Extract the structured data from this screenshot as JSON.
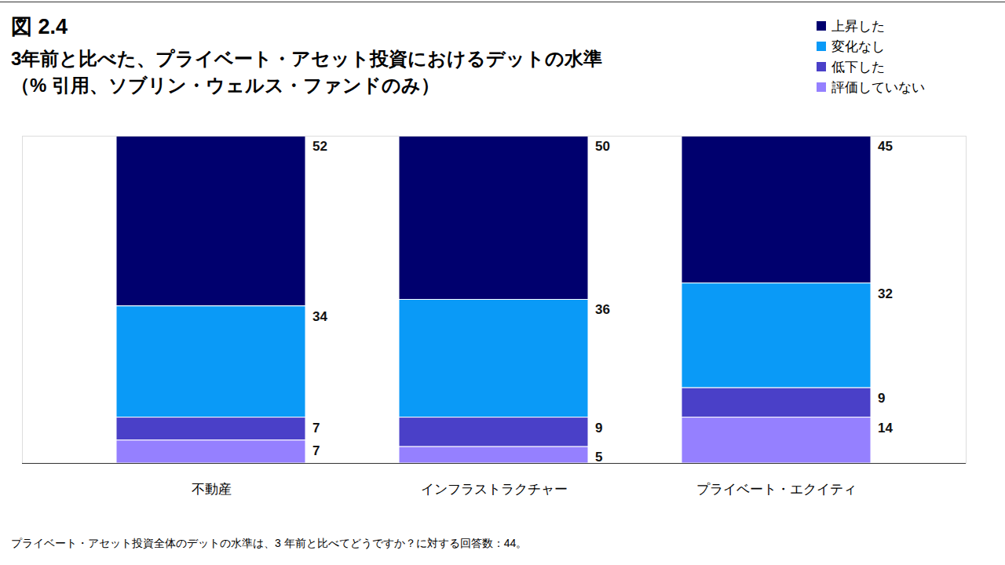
{
  "chart_data": {
    "type": "bar",
    "title": "図 2.4",
    "subtitle": [
      "3年前と比べた、プライベート・アセット投資におけるデットの水準",
      "（% 引用、ソブリン・ウェルス・ファンドのみ）"
    ],
    "caption": "プライベート・アセット投資全体のデットの水準は、3 年前と比べてどうですか？に対する回答数：44。",
    "categories": [
      "不動産",
      "インフラストラクチャー",
      "プライベート・エクイティ"
    ],
    "series": [
      {
        "name": "上昇した",
        "color": "#00006e",
        "values": [
          52,
          50,
          45
        ]
      },
      {
        "name": "変化なし",
        "color": "#0a9af7",
        "values": [
          34,
          36,
          32
        ]
      },
      {
        "name": "低下した",
        "color": "#4a40c8",
        "values": [
          7,
          9,
          9
        ]
      },
      {
        "name": "評価していない",
        "color": "#9580ff",
        "values": [
          7,
          5,
          14
        ]
      }
    ],
    "ylim": [
      0,
      100
    ],
    "yticks": [],
    "stacked": true,
    "data_labels": true,
    "legend": "top-right",
    "tick_labels": "x",
    "grid": false
  }
}
